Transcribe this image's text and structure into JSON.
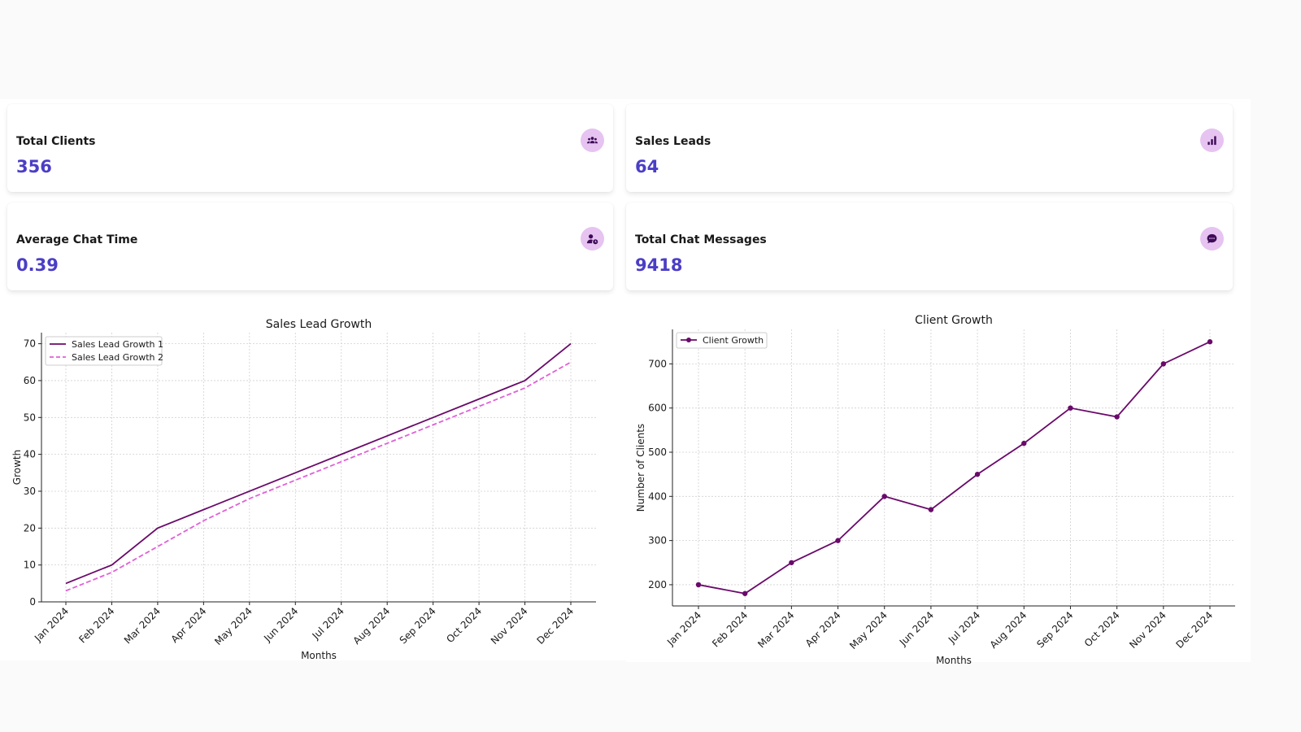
{
  "cards": [
    {
      "title": "Total Clients",
      "value": "356",
      "icon": "users-icon"
    },
    {
      "title": "Sales Leads",
      "value": "64",
      "icon": "bar-chart-icon"
    },
    {
      "title": "Average Chat Time",
      "value": "0.39",
      "icon": "user-clock-icon"
    },
    {
      "title": "Total Chat Messages",
      "value": "9418",
      "icon": "chat-bubble-icon"
    }
  ],
  "colors": {
    "accent_value": "#4b3ec6",
    "icon_badge_bg": "#e6c3f0",
    "icon_fg": "#3d0a57",
    "series_dark": "#6a0a6a",
    "series_pink": "#e060d8"
  },
  "chart_data": [
    {
      "type": "line",
      "title": "Sales Lead Growth",
      "xlabel": "Months",
      "ylabel": "Growth",
      "categories": [
        "Jan 2024",
        "Feb 2024",
        "Mar 2024",
        "Apr 2024",
        "May 2024",
        "Jun 2024",
        "Jul 2024",
        "Aug 2024",
        "Sep 2024",
        "Oct 2024",
        "Nov 2024",
        "Dec 2024"
      ],
      "series": [
        {
          "name": "Sales Lead Growth 1",
          "values": [
            5,
            10,
            20,
            25,
            30,
            35,
            40,
            45,
            50,
            55,
            60,
            70
          ],
          "style": "solid",
          "color": "#6a0a6a"
        },
        {
          "name": "Sales Lead Growth 2",
          "values": [
            3,
            8,
            15,
            22,
            28,
            33,
            38,
            43,
            48,
            53,
            58,
            65
          ],
          "style": "dashed",
          "color": "#e060d8"
        }
      ],
      "ylim": [
        0,
        73
      ],
      "yticks": [
        0,
        10,
        20,
        30,
        40,
        50,
        60,
        70
      ],
      "grid": true,
      "legend": "top-left"
    },
    {
      "type": "line",
      "title": "Client Growth",
      "xlabel": "Months",
      "ylabel": "Number of Clients",
      "categories": [
        "Jan 2024",
        "Feb 2024",
        "Mar 2024",
        "Apr 2024",
        "May 2024",
        "Jun 2024",
        "Jul 2024",
        "Aug 2024",
        "Sep 2024",
        "Oct 2024",
        "Nov 2024",
        "Dec 2024"
      ],
      "series": [
        {
          "name": "Client Growth",
          "values": [
            200,
            180,
            250,
            300,
            400,
            370,
            450,
            520,
            600,
            580,
            700,
            750
          ],
          "style": "solid-markers",
          "color": "#6a0a6a"
        }
      ],
      "ylim": [
        152,
        778
      ],
      "yticks": [
        200,
        300,
        400,
        500,
        600,
        700
      ],
      "grid": true,
      "legend": "top-left"
    }
  ]
}
